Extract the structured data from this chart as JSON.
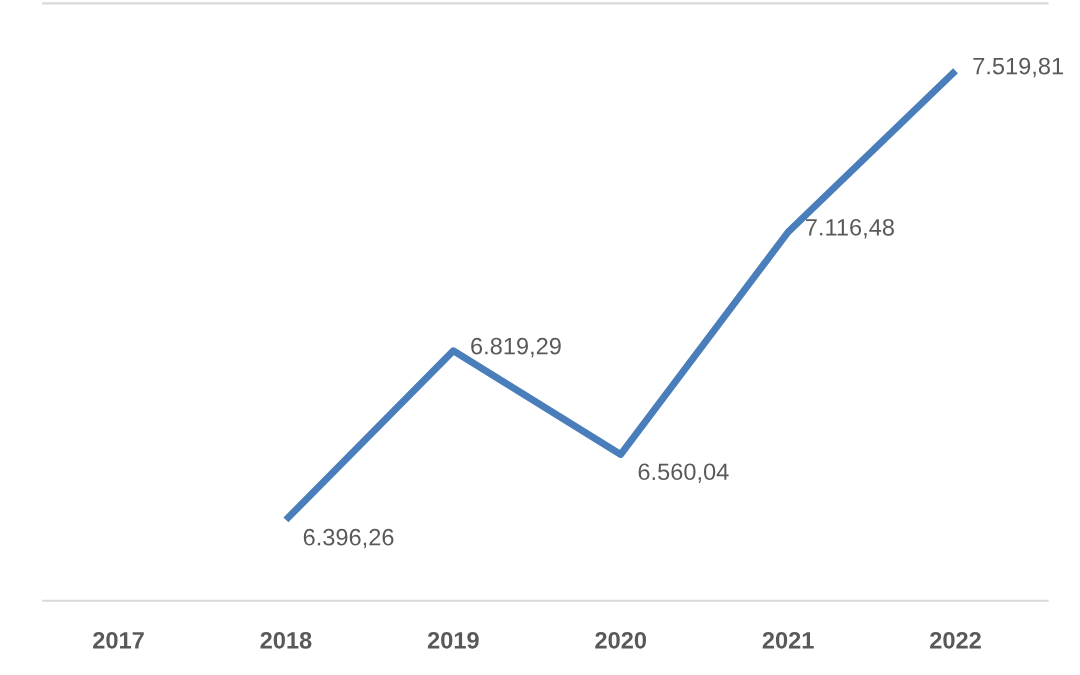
{
  "chart_data": {
    "type": "line",
    "categories": [
      "2017",
      "2018",
      "2019",
      "2020",
      "2021",
      "2022"
    ],
    "series": [
      {
        "color": "#4a7ebb",
        "values": [
          null,
          6396.26,
          6819.29,
          6560.04,
          7116.48,
          7519.81
        ],
        "value_labels": [
          null,
          "6.396,26",
          "6.819,29",
          "6.560,04",
          "7.116,48",
          "7.519,81"
        ]
      }
    ],
    "tick_labels": "x",
    "grid": false,
    "legend": false,
    "marker": "none",
    "line_style": "solid"
  }
}
